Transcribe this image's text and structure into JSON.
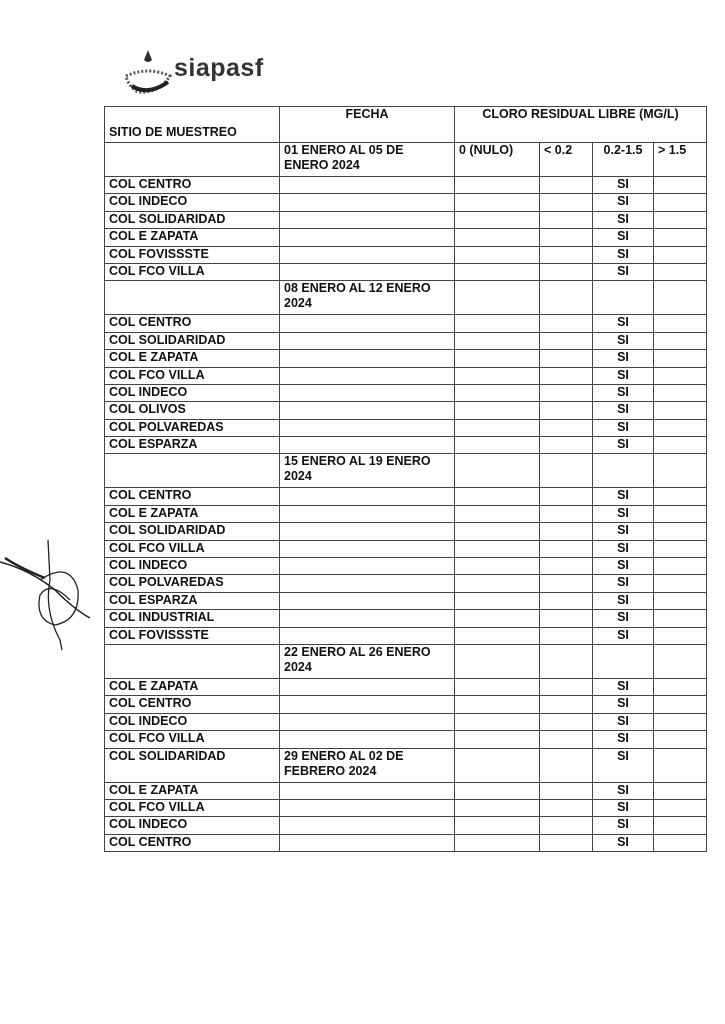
{
  "logo": {
    "text": "siapasf"
  },
  "table": {
    "headers": {
      "site": "SITIO DE MUESTREO",
      "fecha": "FECHA",
      "cloro": "CLORO RESIDUAL LIBRE (MG/L)"
    },
    "ranges": [
      "0 (NULO)",
      "< 0.2",
      "0.2-1.5",
      "> 1.5"
    ],
    "weeks": [
      {
        "fecha": "01 ENERO AL 05 DE ENERO 2024",
        "sites": [
          "COL CENTRO",
          "COL INDECO",
          "COL SOLIDARIDAD",
          "COL E ZAPATA",
          "COL FOVISSSTE",
          "COL FCO VILLA"
        ]
      },
      {
        "fecha": "08 ENERO AL 12 ENERO 2024",
        "sites": [
          "COL CENTRO",
          "COL SOLIDARIDAD",
          "COL E ZAPATA",
          "COL FCO VILLA",
          "COL INDECO",
          "COL OLIVOS",
          "COL POLVAREDAS",
          "COL ESPARZA"
        ]
      },
      {
        "fecha": "15 ENERO AL 19 ENERO 2024",
        "sites": [
          "COL CENTRO",
          "COL E ZAPATA",
          "COL SOLIDARIDAD",
          "COL FCO VILLA",
          "COL INDECO",
          "COL POLVAREDAS",
          "COL ESPARZA",
          "COL INDUSTRIAL",
          "COL FOVISSSTE"
        ]
      },
      {
        "fecha": "22 ENERO AL 26 ENERO 2024",
        "sites": [
          "COL E ZAPATA",
          "COL CENTRO",
          "COL INDECO",
          "COL FCO VILLA"
        ]
      },
      {
        "fecha": "29 ENERO AL 02 DE FEBRERO 2024",
        "header_site": "COL SOLIDARIDAD",
        "sites": [
          "COL E ZAPATA",
          "COL FCO VILLA",
          "COL INDECO",
          "COL CENTRO"
        ]
      }
    ],
    "result_value": "SI"
  }
}
